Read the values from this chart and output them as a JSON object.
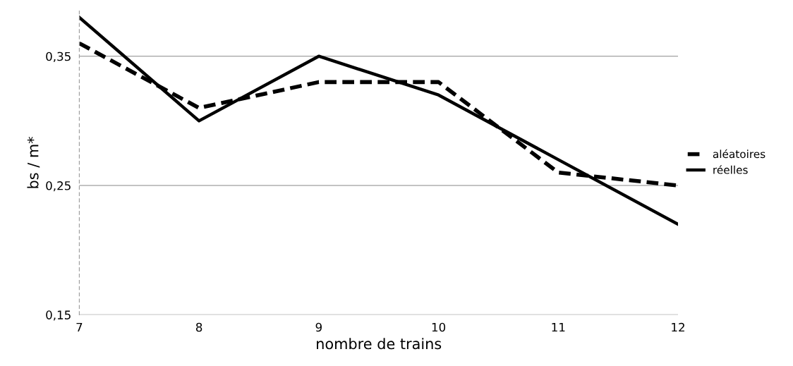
{
  "chart_data": {
    "type": "line",
    "xlabel": "nombre de trains",
    "ylabel": "bs / m*",
    "x": [
      7,
      8,
      9,
      10,
      11,
      12
    ],
    "series": [
      {
        "name": "aléatoires",
        "color": "#000000",
        "line_style": "dashed",
        "values": [
          0.36,
          0.31,
          0.33,
          0.33,
          0.26,
          0.25
        ]
      },
      {
        "name": "réelles",
        "color": "#000000",
        "line_style": "solid",
        "values": [
          0.38,
          0.3,
          0.35,
          0.32,
          0.27,
          0.22
        ]
      }
    ],
    "xlim": [
      7,
      12
    ],
    "xticks": [
      7,
      8,
      9,
      10,
      11,
      12
    ],
    "ylim": [
      0.15,
      0.385
    ],
    "yticks": [
      {
        "value": 0.15,
        "label": "0,15"
      },
      {
        "value": 0.25,
        "label": "0,25"
      },
      {
        "value": 0.35,
        "label": "0,35"
      }
    ],
    "grid": "y",
    "legend": "right",
    "marker": "none"
  }
}
